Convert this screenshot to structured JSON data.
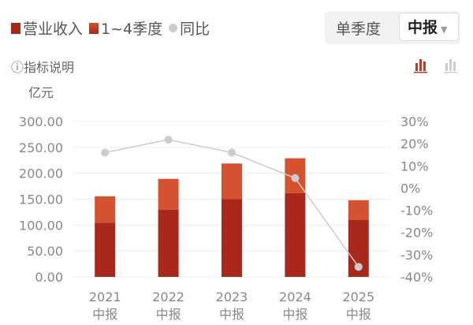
{
  "legend": {
    "revenue": "营业收入",
    "quarters": "1~4季度",
    "yoy": "同比"
  },
  "toggle": {
    "single_quarter": "单季度",
    "period": "中报",
    "caret": "▼"
  },
  "indicator_note": "ⓘ指标说明",
  "unit": "亿元",
  "colors": {
    "revenue": "#a8291c",
    "quarters": "#d4522f",
    "yoy": "#cccccc"
  },
  "chart_data": {
    "type": "bar",
    "categories": [
      "2021\n中报",
      "2022\n中报",
      "2023\n中报",
      "2024\n中报",
      "2025\n中报"
    ],
    "category_years": [
      "2021",
      "2022",
      "2023",
      "2024",
      "2025"
    ],
    "category_period": "中报",
    "series": [
      {
        "name": "营业收入",
        "type": "bar",
        "values": [
          104.6,
          129.6,
          150.0,
          161.7,
          110.2
        ]
      },
      {
        "name": "1~4季度",
        "type": "bar",
        "stacked_total": [
          155.6,
          189.3,
          218.9,
          229.0,
          148.0
        ]
      },
      {
        "name": "同比",
        "type": "line",
        "axis": "right",
        "values": [
          16.0,
          21.8,
          16.0,
          4.5,
          -35.5
        ]
      }
    ],
    "ylabel": "亿元",
    "ylim": [
      0,
      300
    ],
    "yticks": [
      "0.00",
      "50.00",
      "100.00",
      "150.00",
      "200.00",
      "250.00",
      "300.00"
    ],
    "y2lim": [
      -40,
      30
    ],
    "y2ticks": [
      "-40%",
      "-30%",
      "-20%",
      "-10%",
      "0%",
      "10%",
      "20%",
      "30%"
    ],
    "grid": true
  }
}
